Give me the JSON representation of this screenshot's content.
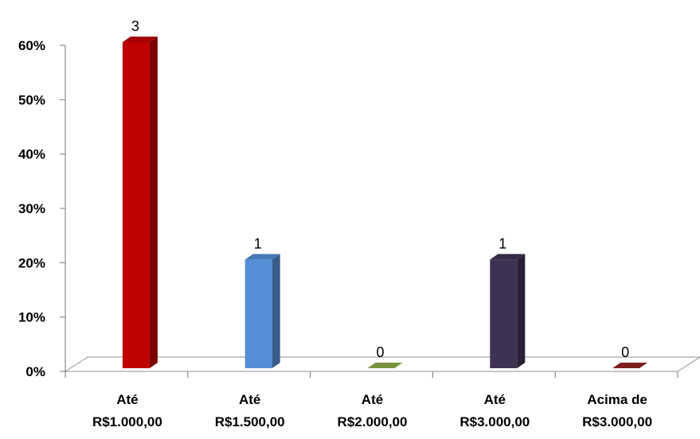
{
  "chart_data": {
    "type": "bar",
    "categories": [
      [
        "Até",
        "R$1.000,00"
      ],
      [
        "Até",
        "R$1.500,00"
      ],
      [
        "Até",
        "R$2.000,00"
      ],
      [
        "Até",
        "R$3.000,00"
      ],
      [
        "Acima de",
        "R$3.000,00"
      ]
    ],
    "values": [
      60,
      20,
      0,
      20,
      0
    ],
    "data_labels": [
      "3",
      "1",
      "0",
      "1",
      "0"
    ],
    "colors": [
      "#c00000",
      "#558ed5",
      "#77933c",
      "#3f3151",
      "#7f1f1f"
    ],
    "yticks": [
      "0%",
      "10%",
      "20%",
      "30%",
      "40%",
      "50%",
      "60%"
    ],
    "ylim": [
      0,
      60
    ],
    "grid": false,
    "legend": "none",
    "style": "3d-column"
  }
}
